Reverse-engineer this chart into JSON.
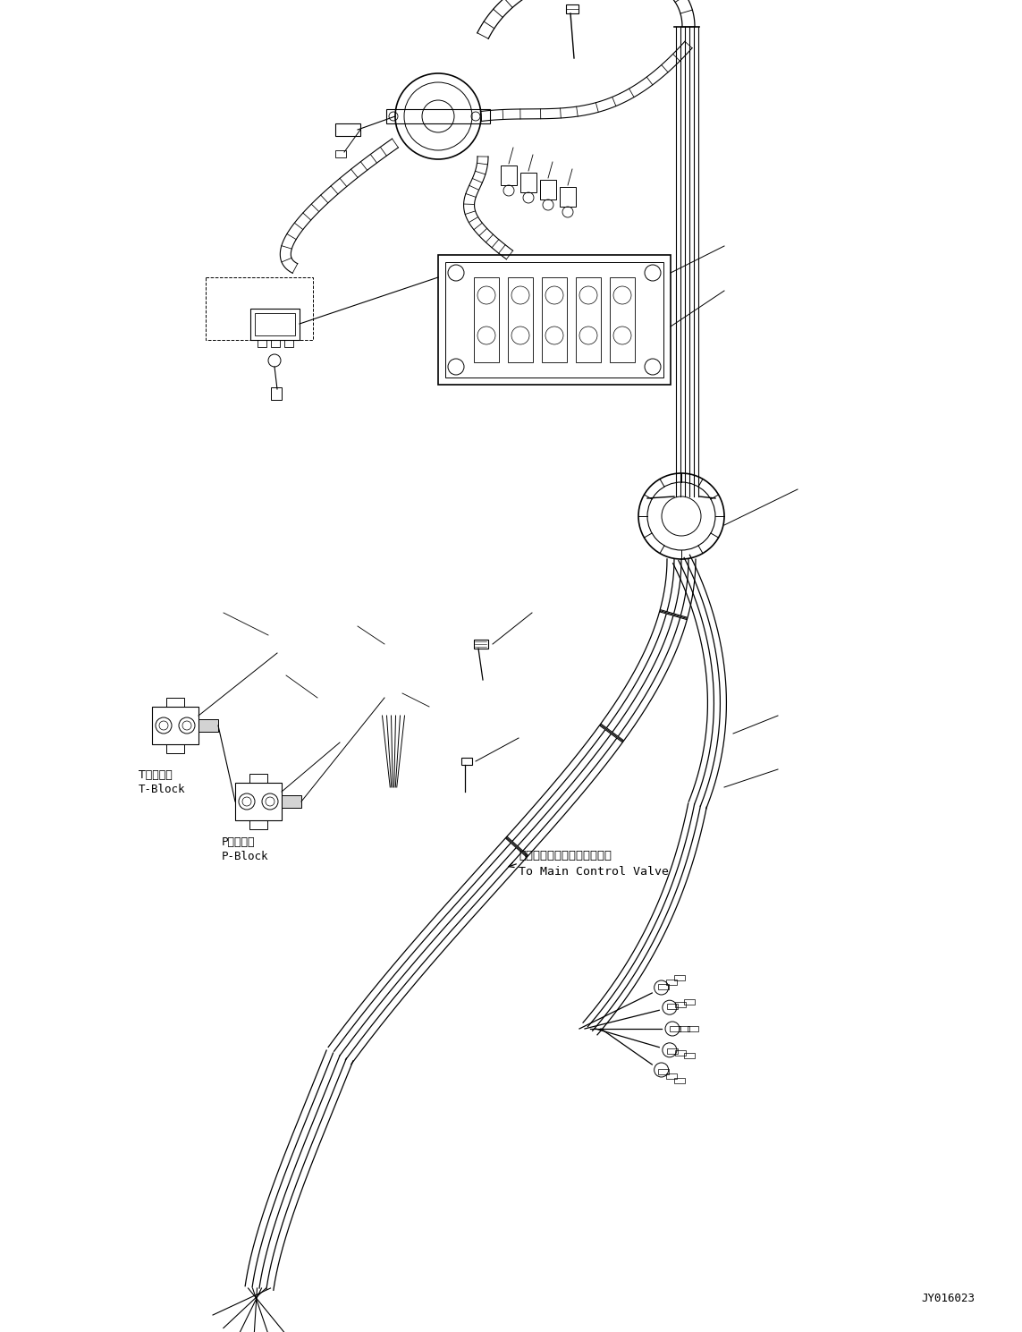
{
  "figure_width": 11.43,
  "figure_height": 14.89,
  "dpi": 100,
  "bg_color": "#ffffff",
  "diagram_id": "JY016023",
  "labels": {
    "t_block_jp": "Tブロック",
    "t_block_en": "T-Block",
    "p_block_jp": "Pブロック",
    "p_block_en": "P-Block",
    "valve_jp": "メインコントロールバルブへ",
    "valve_en": "To Main Control Valve"
  }
}
